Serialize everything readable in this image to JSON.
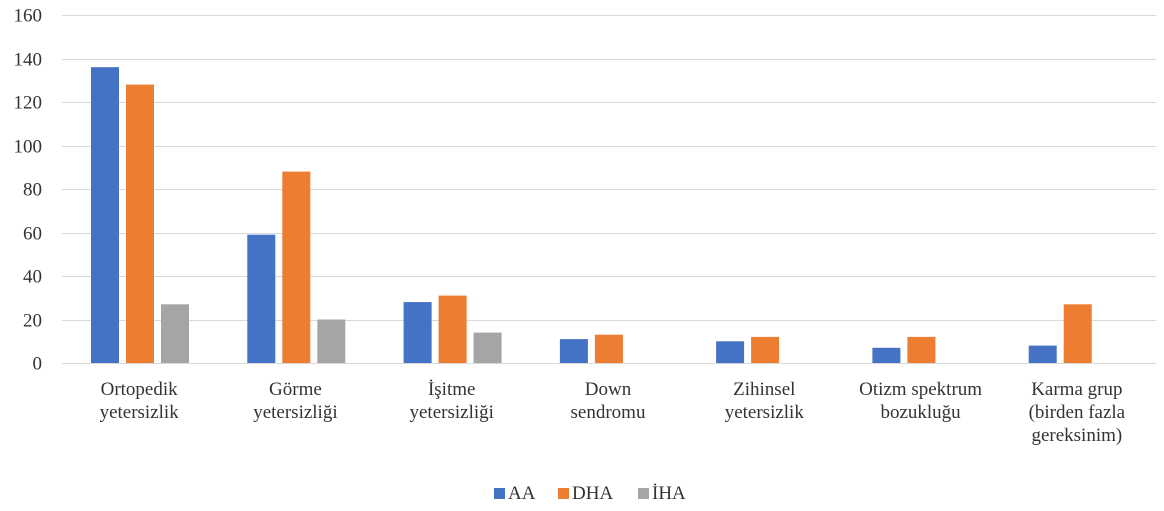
{
  "chart_data": {
    "type": "bar",
    "categories": [
      [
        "Ortopedik",
        "yetersizlik"
      ],
      [
        "Görme",
        "yetersizliği"
      ],
      [
        "İşitme",
        "yetersizliği"
      ],
      [
        "Down",
        "sendromu"
      ],
      [
        "Zihinsel",
        "yetersizlik"
      ],
      [
        "Otizm spektrum",
        "bozukluğu"
      ],
      [
        "Karma grup",
        "(birden fazla",
        "gereksinim)"
      ]
    ],
    "series": [
      {
        "name": "AA",
        "color": "#4472c4",
        "values": [
          136,
          59,
          28,
          11,
          10,
          7,
          8
        ]
      },
      {
        "name": "DHA",
        "color": "#ed7d31",
        "values": [
          128,
          88,
          31,
          13,
          12,
          12,
          27
        ]
      },
      {
        "name": "İHA",
        "color": "#a5a5a5",
        "values": [
          27,
          20,
          14,
          0,
          0,
          0,
          0
        ]
      }
    ],
    "ylim": [
      0,
      160
    ],
    "yticks": [
      "0",
      "20",
      "40",
      "60",
      "80",
      "100",
      "120",
      "140",
      "160"
    ],
    "grid": true,
    "legend": "bottom-center"
  }
}
